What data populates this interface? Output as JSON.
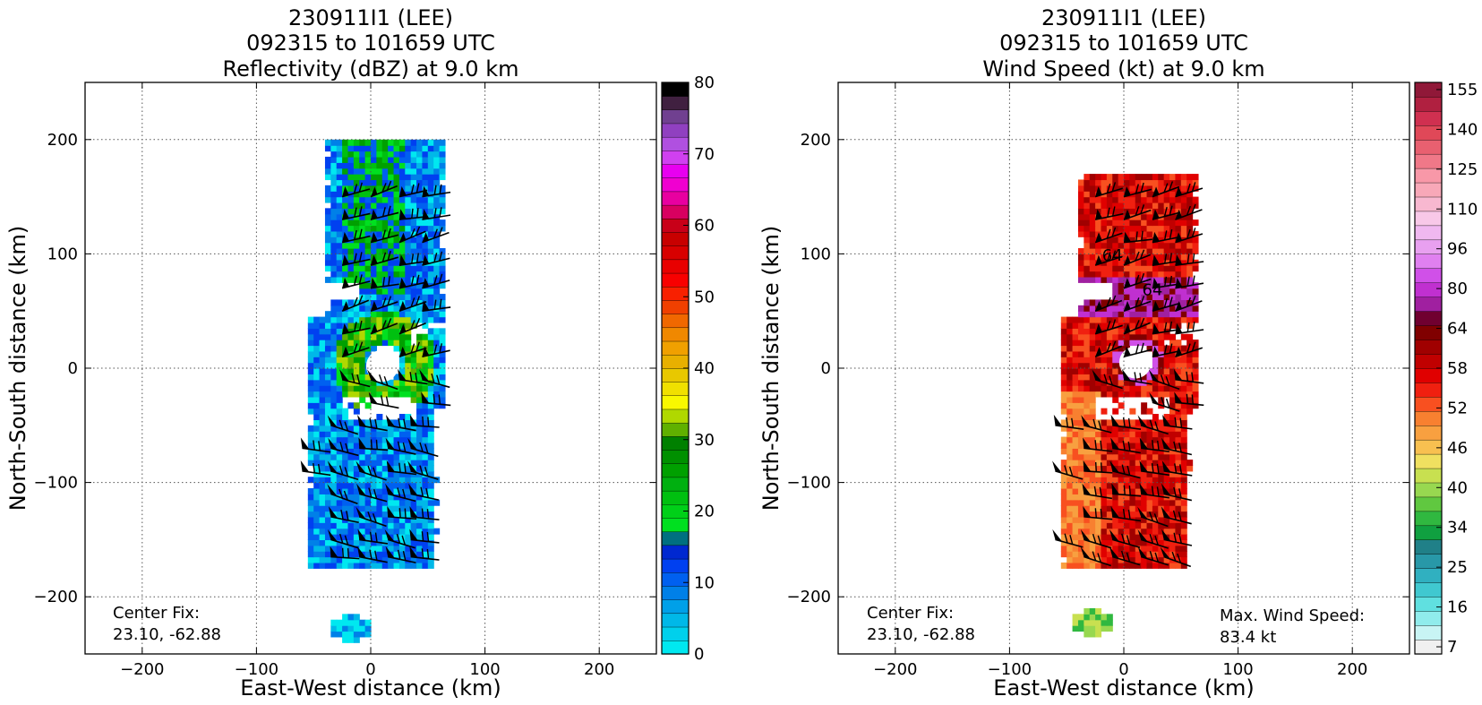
{
  "chart_data": [
    {
      "type": "heatmap",
      "title_lines": [
        "230911I1 (LEE)",
        "092315 to 101659 UTC",
        "Reflectivity (dBZ) at 9.0 km"
      ],
      "xlabel": "East-West distance (km)",
      "ylabel": "North-South distance (km)",
      "xlim": [
        -250,
        250
      ],
      "ylim": [
        -250,
        250
      ],
      "xticks": [
        -200,
        -100,
        0,
        100,
        200
      ],
      "yticks": [
        -200,
        -100,
        0,
        100,
        200
      ],
      "xtick_labels": [
        "−200",
        "−100",
        "0",
        "100",
        "200"
      ],
      "ytick_labels": [
        "−200",
        "−100",
        "0",
        "100",
        "200"
      ],
      "grid": true,
      "center_fix_label": "Center Fix:",
      "center_fix_value": "23.10, -62.88",
      "colorbar": {
        "levels": [
          0,
          80
        ],
        "tick_values": [
          0,
          10,
          20,
          30,
          40,
          50,
          60,
          70,
          80
        ],
        "tick_labels": [
          "0",
          "10",
          "20",
          "30",
          "40",
          "50",
          "60",
          "70",
          "80"
        ],
        "colors": [
          "#00e8f0",
          "#00d0ec",
          "#00b8e8",
          "#00a0e8",
          "#0080e8",
          "#0060f0",
          "#0040f0",
          "#0028d0",
          "#007080",
          "#00e020",
          "#00d018",
          "#00c010",
          "#00b010",
          "#00a000",
          "#009000",
          "#008000",
          "#60b000",
          "#b0d800",
          "#f8f800",
          "#f0e000",
          "#e8c800",
          "#e8b000",
          "#f0a000",
          "#f08800",
          "#f06800",
          "#f04000",
          "#f82000",
          "#f80000",
          "#e80000",
          "#d80000",
          "#c80000",
          "#c80018",
          "#d80060",
          "#e800a0",
          "#f000d0",
          "#e800f0",
          "#d040f0",
          "#b050e0",
          "#9040c0",
          "#704090",
          "#402040",
          "#000000"
        ]
      },
      "features": {
        "main_band": {
          "x": [
            -55,
            60
          ],
          "y": [
            -175,
            195
          ]
        },
        "small_patch_xy": [
          -20,
          -230
        ],
        "eye_center_xy": [
          10,
          2
        ]
      }
    },
    {
      "type": "heatmap",
      "title_lines": [
        "230911I1 (LEE)",
        "092315 to 101659 UTC",
        "Wind Speed (kt) at 9.0 km"
      ],
      "xlabel": "East-West distance (km)",
      "ylabel": "North-South distance (km)",
      "xlim": [
        -250,
        250
      ],
      "ylim": [
        -250,
        250
      ],
      "xticks": [
        -200,
        -100,
        0,
        100,
        200
      ],
      "yticks": [
        -200,
        -100,
        0,
        100,
        200
      ],
      "xtick_labels": [
        "−200",
        "−100",
        "0",
        "100",
        "200"
      ],
      "ytick_labels": [
        "−200",
        "−100",
        "0",
        "100",
        "200"
      ],
      "grid": true,
      "center_fix_label": "Center Fix:",
      "center_fix_value": "23.10, -62.88",
      "max_wind_label": "Max. Wind Speed:",
      "max_wind_value": "83.4 kt",
      "contour_labels": [
        {
          "text": "64",
          "x": -10,
          "y": 94
        },
        {
          "text": "64",
          "x": 25,
          "y": 64
        }
      ],
      "colorbar": {
        "tick_labels": [
          "7",
          "16",
          "25",
          "34",
          "40",
          "46",
          "52",
          "58",
          "64",
          "80",
          "96",
          "110",
          "125",
          "140",
          "155"
        ],
        "colors": [
          "#f0f0f0",
          "#c8f4f4",
          "#90ecec",
          "#60e0e0",
          "#40c8d0",
          "#30b0c0",
          "#2898a8",
          "#208088",
          "#10a040",
          "#30b840",
          "#60c840",
          "#98d850",
          "#c8e050",
          "#f0e060",
          "#f8c050",
          "#f8a040",
          "#f88030",
          "#f85020",
          "#f02010",
          "#e00000",
          "#c00000",
          "#a00000",
          "#800000",
          "#700030",
          "#a020a0",
          "#c030d0",
          "#d050e8",
          "#e080f0",
          "#e8a0f0",
          "#f0b8f0",
          "#f8c8e8",
          "#f8b8d0",
          "#f8a8b8",
          "#f898a8",
          "#f07888",
          "#e86070",
          "#e04858",
          "#d03050",
          "#b02040",
          "#901838"
        ]
      },
      "features": {
        "main_band": {
          "x": [
            -55,
            60
          ],
          "y": [
            -175,
            165
          ]
        },
        "small_patch_xy": [
          -30,
          -225
        ],
        "eye_center_xy": [
          10,
          5
        ]
      }
    }
  ]
}
